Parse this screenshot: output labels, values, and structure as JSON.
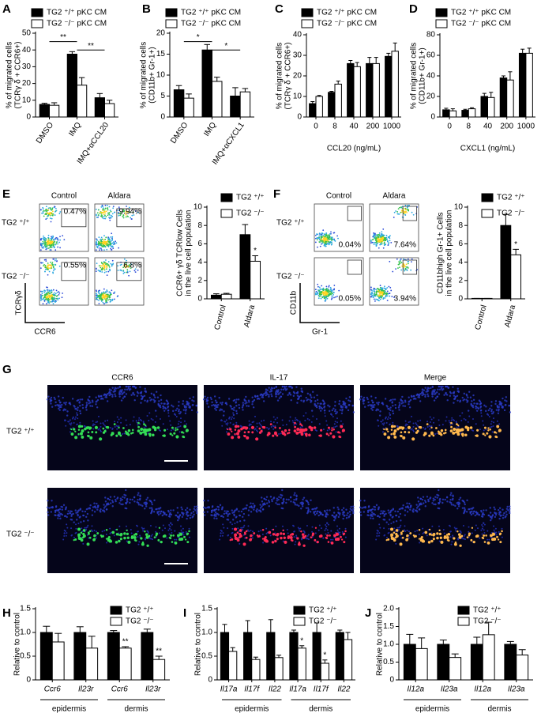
{
  "chart_data": [
    {
      "type": "bar",
      "panel": "A",
      "ylabel": [
        "% of migrated cells",
        "(TCRγ δ + CCR6+)"
      ],
      "categories": [
        "DMSO",
        "IMQ",
        "IMQ+αCCL20"
      ],
      "ylim": [
        0,
        50
      ],
      "yticks": [
        0,
        10,
        20,
        30,
        40,
        50
      ],
      "brackets": true,
      "series": [
        {
          "name": "TG2 ⁺/⁺ pKC CM",
          "color": "#000000",
          "values": [
            7.5,
            37.5,
            11.5
          ],
          "errors": [
            0.7,
            1.5,
            2.5
          ],
          "significance": [
            null,
            "**",
            "**"
          ]
        },
        {
          "name": "TG2 ⁻/⁻ pKC CM",
          "color": "#ffffff",
          "values": [
            7,
            19,
            8
          ],
          "errors": [
            1.5,
            4.5,
            2
          ]
        }
      ]
    },
    {
      "type": "bar",
      "panel": "B",
      "ylabel": [
        "% of migrated cells",
        "(CD11b+ Gr-1+)"
      ],
      "categories": [
        "DMSO",
        "IMQ",
        "IMQ+αCXCL1"
      ],
      "ylim": [
        0,
        20
      ],
      "yticks": [
        0,
        5,
        10,
        15,
        20
      ],
      "brackets": true,
      "series": [
        {
          "name": "TG2 ⁺/⁺ pKC CM",
          "color": "#000000",
          "values": [
            6.5,
            16,
            5
          ],
          "errors": [
            1,
            1.3,
            2
          ],
          "significance": [
            null,
            "*",
            "*"
          ]
        },
        {
          "name": "TG2 ⁻/⁻ pKC CM",
          "color": "#ffffff",
          "values": [
            4.5,
            8.5,
            6
          ],
          "errors": [
            1,
            1,
            0.8
          ]
        }
      ]
    },
    {
      "type": "bar",
      "panel": "C",
      "ylabel": [
        "% of migrated cells",
        "(TCRγ δ + CCR6+)"
      ],
      "xlabel": "CCL20 (ng/mL)",
      "categories": [
        "0",
        "8",
        "40",
        "200",
        "1000"
      ],
      "ylim": [
        0,
        40
      ],
      "yticks": [
        0,
        10,
        20,
        30,
        40
      ],
      "series": [
        {
          "name": "TG2 ⁺/⁺ pKC CM",
          "color": "#000000",
          "values": [
            6.5,
            12,
            26,
            26,
            29.5
          ],
          "errors": [
            1,
            0.5,
            1.5,
            3,
            1.5
          ]
        },
        {
          "name": "TG2 ⁻/⁻ pKC CM",
          "color": "#ffffff",
          "values": [
            10,
            16,
            24.5,
            26,
            32
          ],
          "errors": [
            0.5,
            1.5,
            2,
            3,
            4
          ]
        }
      ]
    },
    {
      "type": "bar",
      "panel": "D",
      "ylabel": [
        "% of migrated cells",
        "(CD11b+ Gr-1+)"
      ],
      "xlabel": "CXCL1 (ng/mL)",
      "categories": [
        "0",
        "8",
        "40",
        "200",
        "1000"
      ],
      "ylim": [
        0,
        80
      ],
      "yticks": [
        0,
        20,
        40,
        60,
        80
      ],
      "series": [
        {
          "name": "TG2 ⁺/⁺ pKC CM",
          "color": "#000000",
          "values": [
            7,
            6.5,
            20,
            38,
            62
          ],
          "errors": [
            1.5,
            1,
            3,
            2,
            4
          ]
        },
        {
          "name": "TG2 ⁻/⁻ pKC CM",
          "color": "#ffffff",
          "values": [
            6,
            8,
            19,
            36,
            62
          ],
          "errors": [
            2,
            1,
            5,
            8,
            5
          ]
        }
      ]
    },
    {
      "type": "bar",
      "ylabel": [
        "CCR6+ γδ TCRlow Cells",
        "in the live cell population"
      ],
      "categories": [
        "Control",
        "Aldara"
      ],
      "ylim": [
        0,
        10
      ],
      "yticks": [
        0,
        2,
        4,
        6,
        8,
        10
      ],
      "series": [
        {
          "name": "TG2 ⁺/⁺",
          "color": "#000000",
          "values": [
            0.4,
            7
          ],
          "errors": [
            0.15,
            1.1
          ]
        },
        {
          "name": "TG2 ⁻/⁻",
          "color": "#ffffff",
          "values": [
            0.5,
            4.1
          ],
          "errors": [
            0.1,
            0.6
          ],
          "significance": [
            null,
            "*"
          ]
        }
      ]
    },
    {
      "type": "bar",
      "ylabel": [
        "CD11bhigh Gr-1+ Cells",
        "in the live cell population"
      ],
      "categories": [
        "Control",
        "Aldara"
      ],
      "ylim": [
        0,
        10
      ],
      "yticks": [
        0,
        2,
        4,
        6,
        8,
        10
      ],
      "series": [
        {
          "name": "TG2 ⁺/⁺",
          "color": "#000000",
          "values": [
            0.05,
            8
          ],
          "errors": [
            0,
            1.2
          ]
        },
        {
          "name": "TG2 ⁻/⁻",
          "color": "#ffffff",
          "values": [
            0.05,
            4.8
          ],
          "errors": [
            0,
            0.6
          ],
          "significance": [
            null,
            "*"
          ]
        }
      ]
    },
    {
      "type": "bar",
      "panel": "H",
      "ylabel": [
        "Relative to control"
      ],
      "italic_categories": true,
      "categories": [
        "Ccr6",
        "Il23r",
        "Ccr6",
        "Il23r"
      ],
      "groups": [
        "epidermis",
        "dermis"
      ],
      "ylim": [
        0,
        1.5
      ],
      "yticks": [
        0,
        0.5,
        {
          "value": 1,
          "label": "1.0"
        },
        1.5
      ],
      "series": [
        {
          "name": "TG2 ⁺/⁺",
          "color": "#000000",
          "values": [
            1,
            1,
            1,
            1
          ],
          "errors": [
            0.13,
            0.12,
            0.04,
            0.07
          ]
        },
        {
          "name": "TG2 ⁻/⁻",
          "color": "#ffffff",
          "values": [
            0.8,
            0.67,
            0.67,
            0.43
          ],
          "errors": [
            0.18,
            0.25,
            0.03,
            0.07
          ],
          "significance": [
            null,
            null,
            "**",
            "**"
          ]
        }
      ]
    },
    {
      "type": "bar",
      "panel": "I",
      "ylabel": [
        "Relative to control"
      ],
      "italic_categories": true,
      "categories": [
        "Il17a",
        "Il17f",
        "Il22",
        "Il17a",
        "Il17f",
        "Il22"
      ],
      "groups": [
        "epidermis",
        "dermis"
      ],
      "ylim": [
        0,
        1.5
      ],
      "yticks": [
        0,
        0.5,
        {
          "value": 1,
          "label": "1.0"
        },
        1.5
      ],
      "series": [
        {
          "name": "TG2 ⁺/⁺",
          "color": "#000000",
          "values": [
            1,
            1,
            1,
            1,
            1,
            1
          ],
          "errors": [
            0.17,
            0.25,
            0.27,
            0.05,
            0.2,
            0.05
          ]
        },
        {
          "name": "TG2 ⁻/⁻",
          "color": "#ffffff",
          "values": [
            0.6,
            0.43,
            0.47,
            0.67,
            0.35,
            0.85
          ],
          "errors": [
            0.08,
            0.05,
            0.05,
            0.05,
            0.07,
            0.15
          ],
          "significance": [
            null,
            null,
            null,
            "*",
            "*",
            null
          ]
        }
      ]
    },
    {
      "type": "bar",
      "panel": "J",
      "ylabel": [
        "Relative to control"
      ],
      "italic_categories": true,
      "categories": [
        "Il12a",
        "Il23a",
        "Il12a",
        "Il23a"
      ],
      "groups": [
        "epidermis",
        "dermis"
      ],
      "ylim": [
        0,
        2
      ],
      "yticks": [
        0,
        0.5,
        {
          "value": 1,
          "label": "1.0"
        },
        1.5,
        {
          "value": 2,
          "label": "2.0"
        }
      ],
      "series": [
        {
          "name": "TG2 ⁺/⁺",
          "color": "#000000",
          "values": [
            1,
            1,
            1,
            1
          ],
          "errors": [
            0.28,
            0.12,
            0.2,
            0.08
          ]
        },
        {
          "name": "TG2 ⁻/⁻",
          "color": "#ffffff",
          "values": [
            0.88,
            0.63,
            1.27,
            0.7
          ],
          "errors": [
            0.3,
            0.1,
            0.35,
            0.15
          ]
        }
      ]
    }
  ],
  "flow_cytometry": [
    {
      "panel": "E",
      "columns": [
        "Control",
        "Aldara"
      ],
      "rows": [
        "TG2 ⁺/⁺",
        "TG2 ⁻/⁻"
      ],
      "percentages": [
        [
          "0.47%",
          "9.94%"
        ],
        [
          "0.55%",
          "6.8%"
        ]
      ],
      "y_axis": "TCRγδ",
      "x_axis": "CCR6"
    },
    {
      "panel": "F",
      "columns": [
        "Control",
        "Aldara"
      ],
      "rows": [
        "TG2 ⁺/⁺",
        "TG2 ⁻/⁻"
      ],
      "percentages": [
        [
          "0.04%",
          "7.64%"
        ],
        [
          "0.05%",
          "3.94%"
        ]
      ],
      "y_axis": "CD11b",
      "x_axis": "Gr-1"
    }
  ],
  "microscopy": {
    "panel": "G",
    "columns": [
      "CCR6",
      "IL-17",
      "Merge"
    ],
    "column_colors": [
      "#33dd55",
      "#ff2a55",
      "#ffb84d"
    ],
    "rows": [
      "TG2 ⁺/⁺",
      "TG2 ⁻/⁻"
    ]
  }
}
